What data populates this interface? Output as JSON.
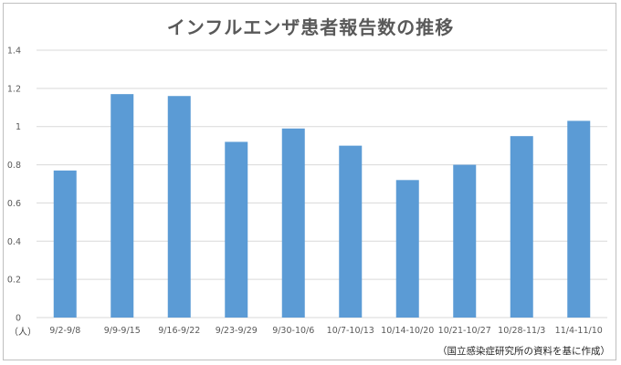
{
  "chart_data": {
    "type": "bar",
    "title": "インフルエンザ患者報告数の推移",
    "ylabel": "（人）",
    "source": "（国立感染症研究所の資料を基に作成）",
    "categories": [
      "9/2-9/8",
      "9/9-9/15",
      "9/16-9/22",
      "9/23-9/29",
      "9/30-10/6",
      "10/7-10/13",
      "10/14-10/20",
      "10/21-10/27",
      "10/28-11/3",
      "11/4-11/10"
    ],
    "values": [
      0.77,
      1.17,
      1.16,
      0.92,
      0.99,
      0.9,
      0.72,
      0.8,
      0.95,
      1.03
    ],
    "y_ticks": [
      "0",
      "0.2",
      "0.4",
      "0.6",
      "0.8",
      "1",
      "1.2",
      "1.4"
    ],
    "ylim": [
      0,
      1.4
    ],
    "grid": true,
    "legend": "none",
    "colors": {
      "bar": "#5b9bd5",
      "grid": "#d9d9d9",
      "text": "#595959"
    }
  }
}
